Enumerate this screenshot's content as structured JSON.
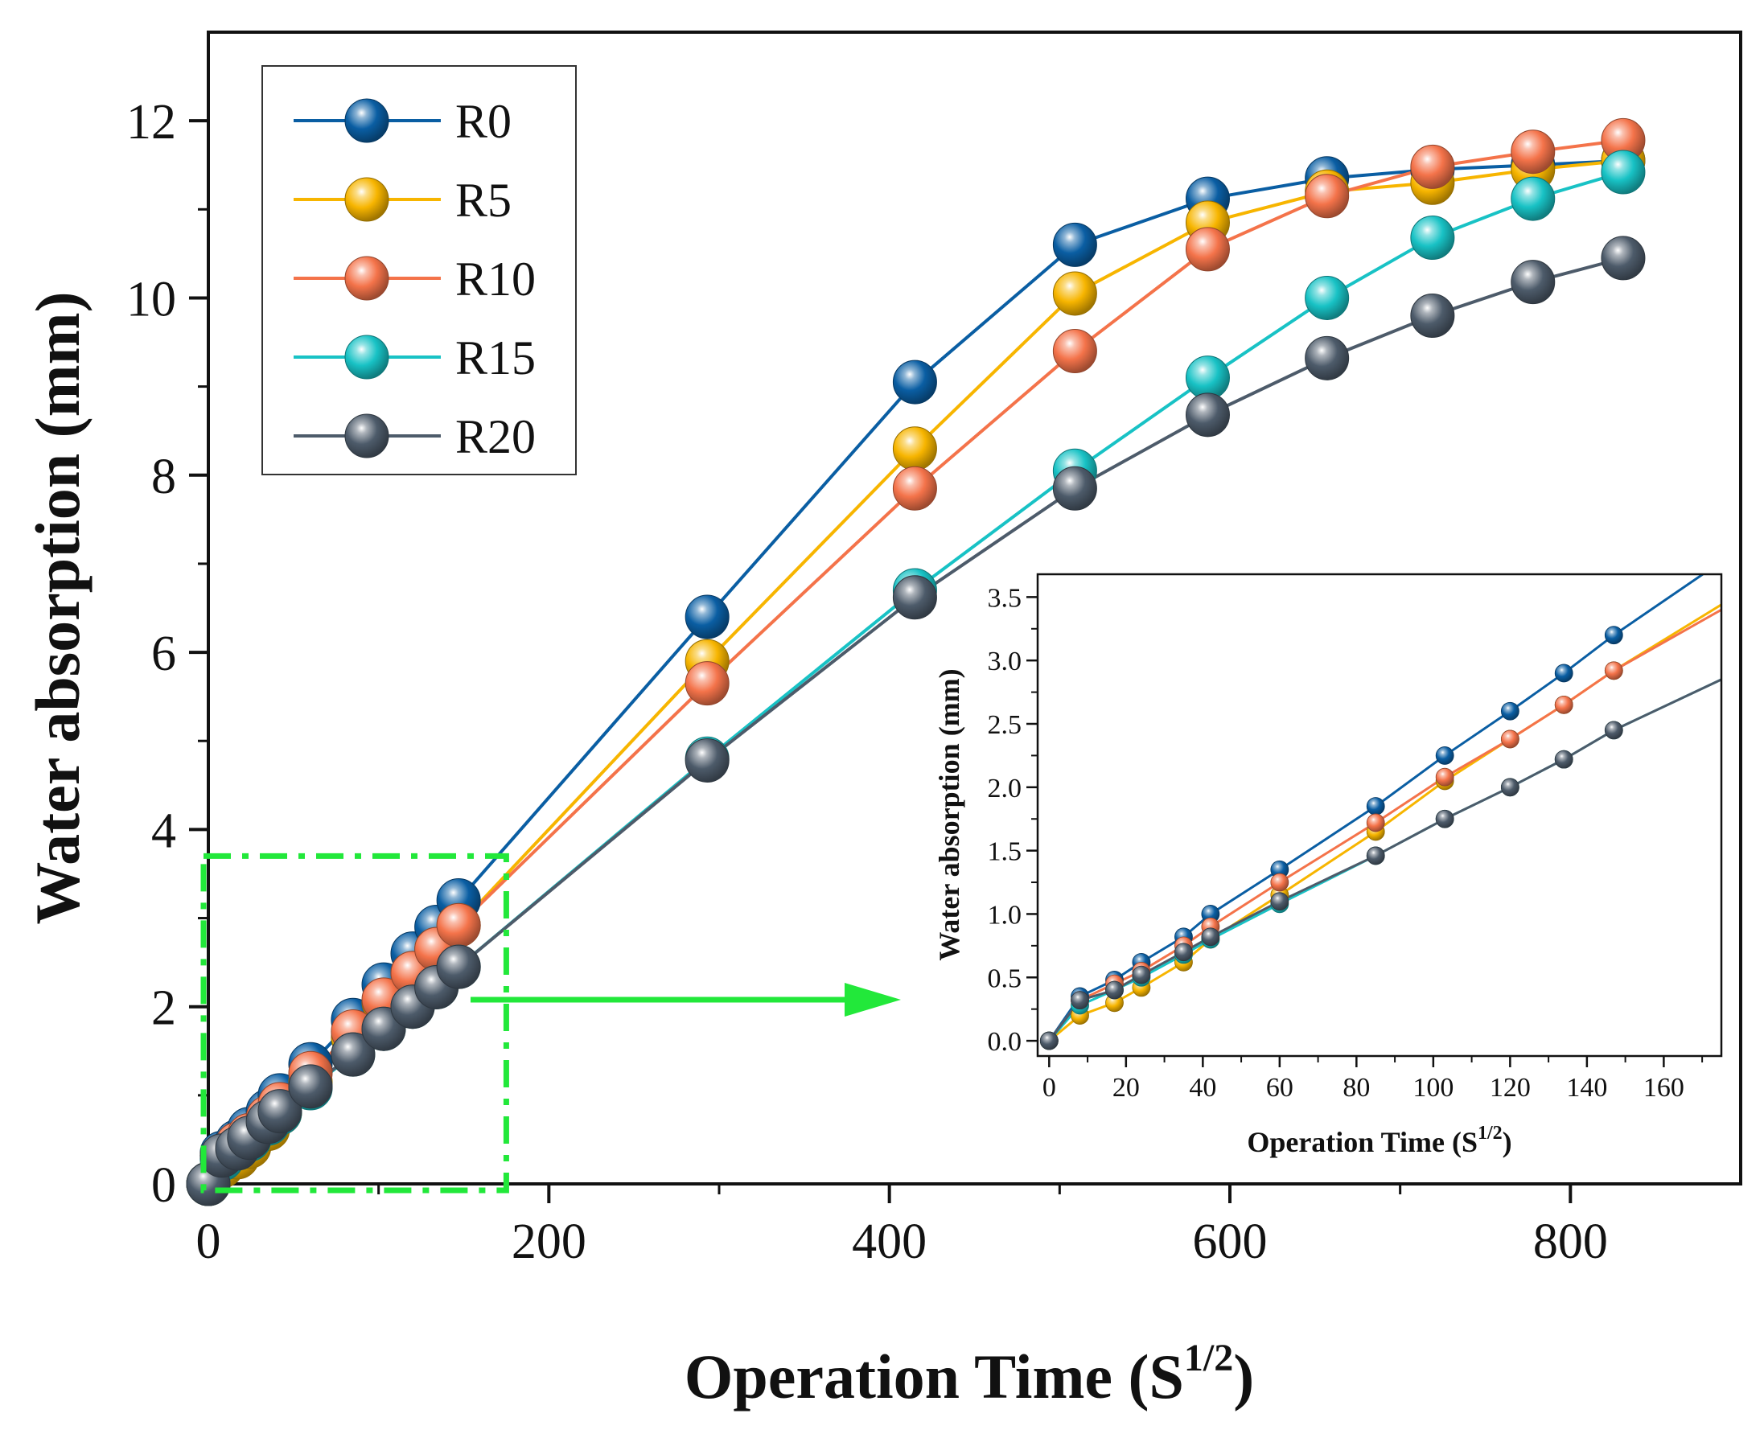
{
  "chart_data": {
    "type": "line",
    "main": {
      "xlabel": "Operation Time (S1/2)",
      "ylabel": "Water absorption (mm)",
      "xlim": [
        0,
        900
      ],
      "ylim": [
        0,
        13
      ],
      "xticks": [
        "0",
        "200",
        "400",
        "600",
        "800"
      ],
      "yticks": [
        "0",
        "2",
        "4",
        "6",
        "8",
        "10",
        "12"
      ],
      "x": [
        0,
        8,
        17,
        24,
        35,
        42,
        60,
        85,
        103,
        120,
        134,
        147,
        293,
        415,
        509,
        587,
        657,
        719,
        778,
        831
      ],
      "series": [
        {
          "name": "R0",
          "color": "#0a5ea3",
          "values": [
            0,
            0.35,
            0.48,
            0.62,
            0.82,
            1.0,
            1.35,
            1.85,
            2.25,
            2.6,
            2.9,
            3.2,
            6.4,
            9.05,
            10.6,
            11.12,
            11.35,
            11.45,
            11.5,
            11.55
          ]
        },
        {
          "name": "R5",
          "color": "#f7b500",
          "values": [
            0,
            0.2,
            0.3,
            0.42,
            0.62,
            0.8,
            1.15,
            1.65,
            2.05,
            2.38,
            2.65,
            2.92,
            5.9,
            8.3,
            10.05,
            10.85,
            11.2,
            11.3,
            11.45,
            11.55
          ]
        },
        {
          "name": "R10",
          "color": "#f4734a",
          "values": [
            0,
            0.32,
            0.45,
            0.55,
            0.75,
            0.9,
            1.25,
            1.72,
            2.08,
            2.38,
            2.65,
            2.92,
            5.65,
            7.85,
            9.4,
            10.55,
            11.15,
            11.48,
            11.65,
            11.78
          ]
        },
        {
          "name": "R15",
          "color": "#18c2c5",
          "values": [
            0,
            0.28,
            0.4,
            0.5,
            0.68,
            0.8,
            1.08,
            1.46,
            1.75,
            2.0,
            2.22,
            2.45,
            4.8,
            6.7,
            8.05,
            9.1,
            10.0,
            10.68,
            11.12,
            11.42
          ]
        },
        {
          "name": "R20",
          "color": "#4d5b6a",
          "values": [
            0,
            0.32,
            0.4,
            0.52,
            0.7,
            0.82,
            1.1,
            1.46,
            1.75,
            2.0,
            2.22,
            2.45,
            4.78,
            6.62,
            7.85,
            8.68,
            9.32,
            9.8,
            10.18,
            10.45
          ]
        }
      ],
      "legend_position": "top-left",
      "highlight_box": {
        "xrange": [
          0,
          175
        ],
        "yrange": [
          0,
          3.7
        ],
        "color": "#22e83a"
      }
    },
    "inset": {
      "xlabel": "Operation Time (S1/2)",
      "ylabel": "Water absorption (mm)",
      "xlim": [
        -3,
        175
      ],
      "ylim": [
        -0.12,
        3.68
      ],
      "xticks": [
        "0",
        "20",
        "40",
        "60",
        "80",
        "100",
        "120",
        "140",
        "160"
      ],
      "yticks": [
        "0.0",
        "0.5",
        "1.0",
        "1.5",
        "2.0",
        "2.5",
        "3.0",
        "3.5"
      ],
      "x": [
        0,
        8,
        17,
        24,
        35,
        42,
        60,
        85,
        103,
        120,
        134,
        147
      ],
      "line_end_x": 175,
      "line_end_values": {
        "R0": 3.78,
        "R5": 3.44,
        "R10": 3.4,
        "R15": 2.85,
        "R20": 2.85
      },
      "position": "lower-right"
    }
  },
  "axis_title_parts": {
    "x_main": "Operation Time (S",
    "x_sup": "1/2",
    "x_close": ")"
  }
}
